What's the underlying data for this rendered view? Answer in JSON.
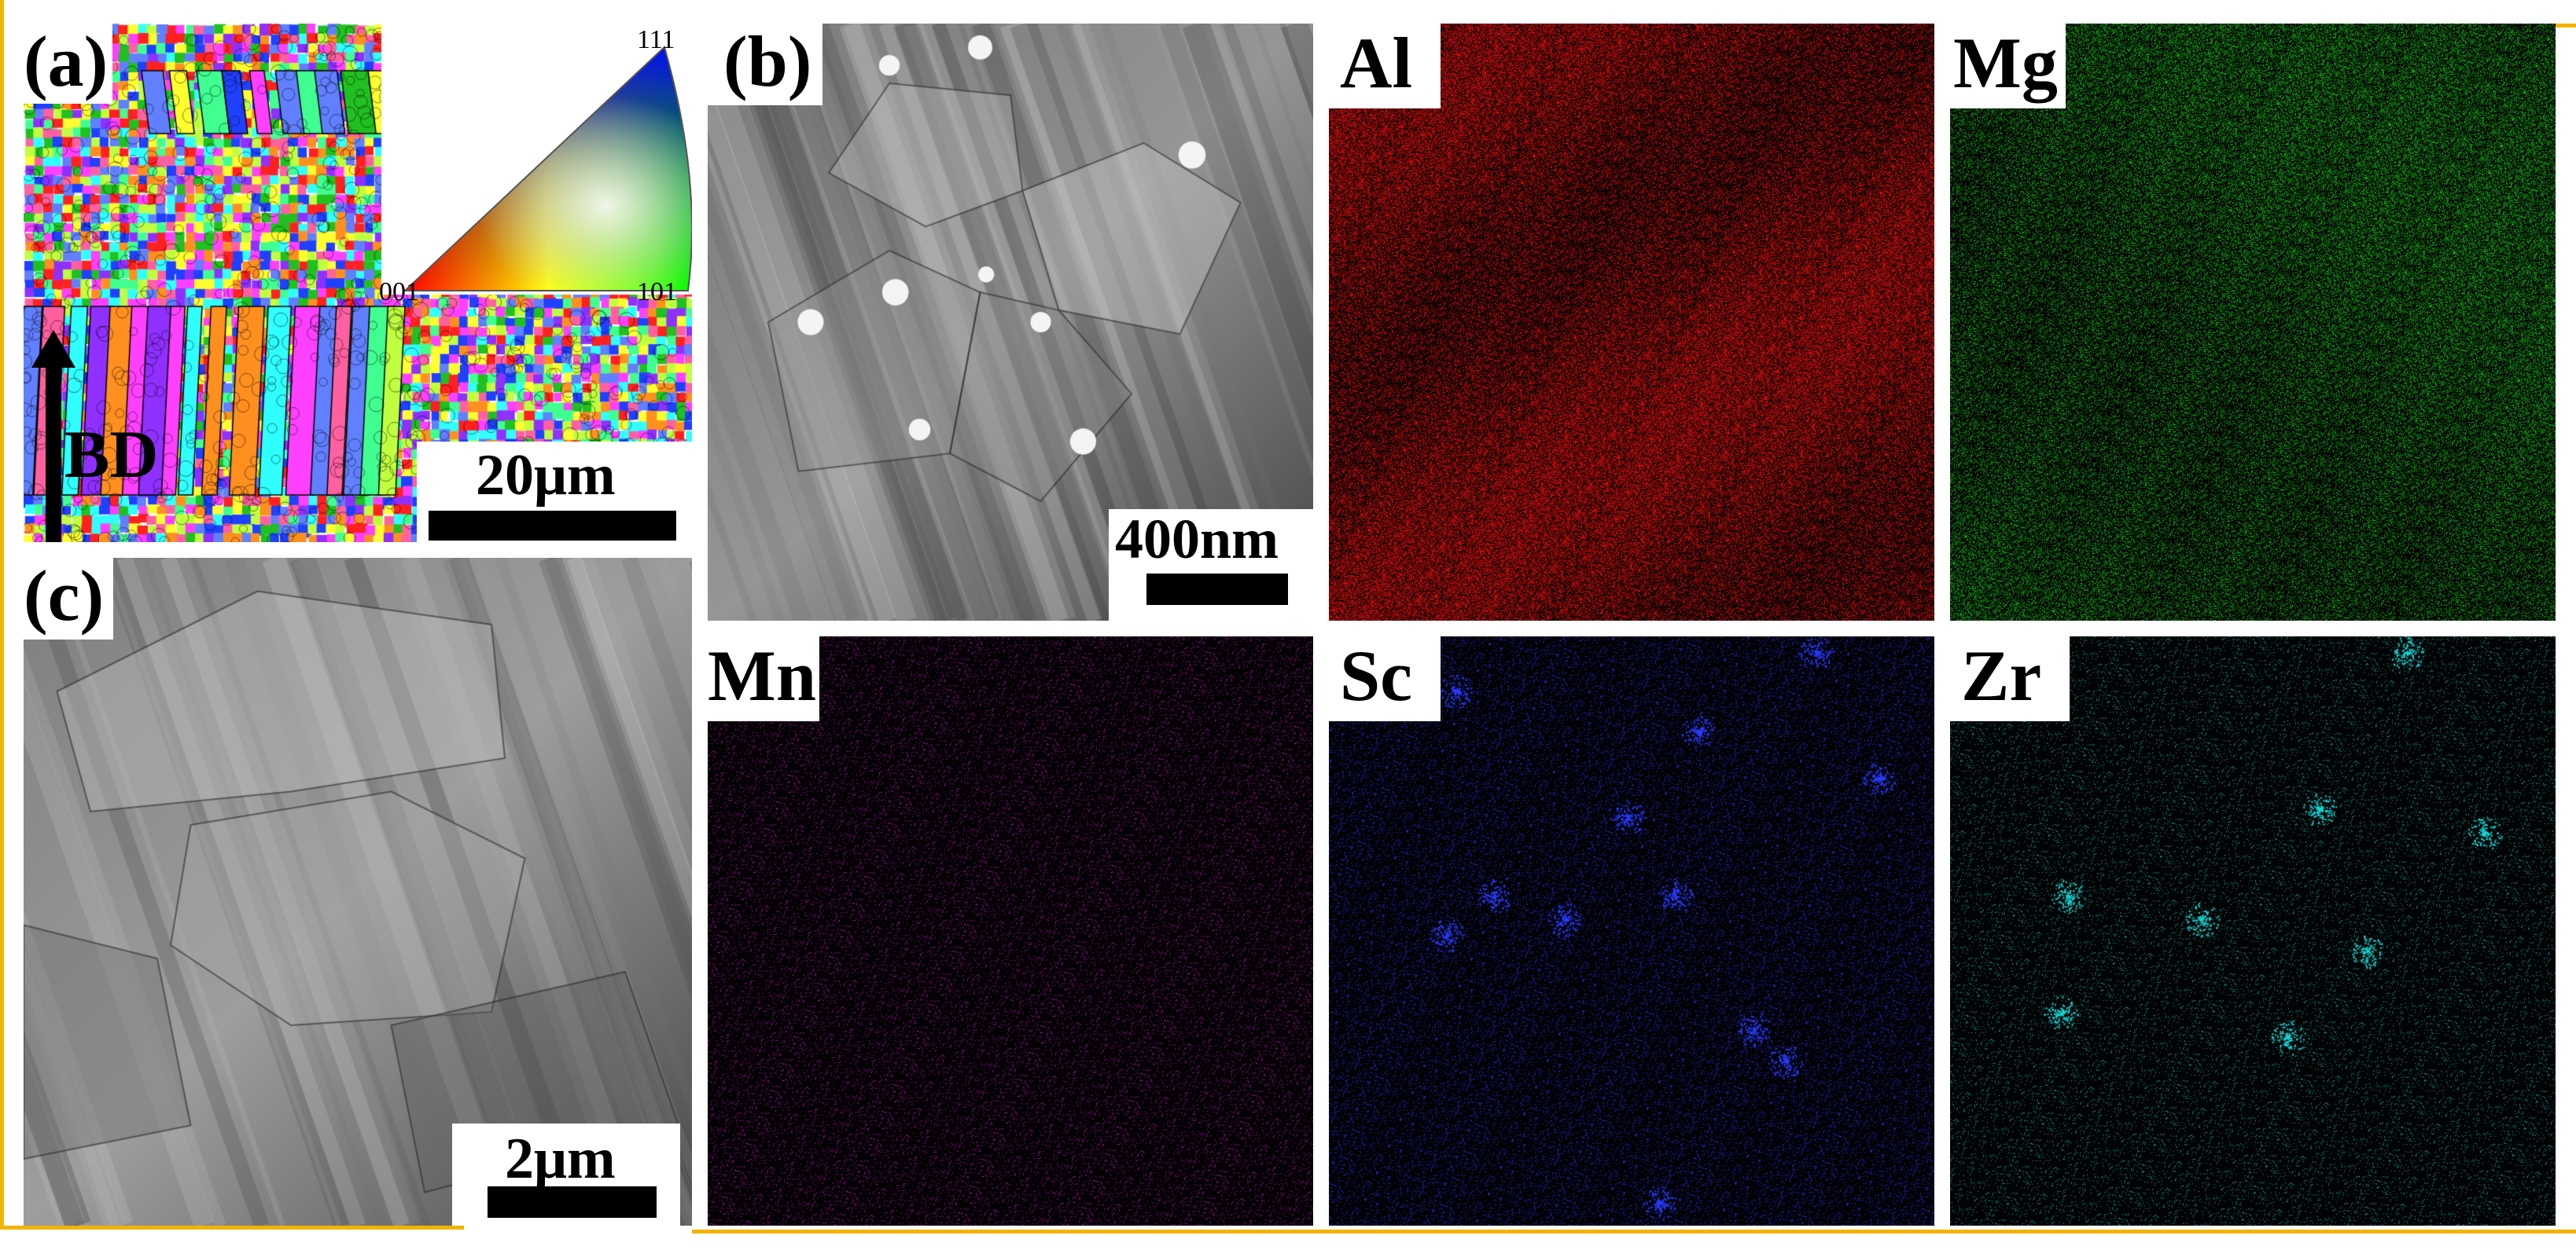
{
  "figure": {
    "panels": {
      "a": {
        "label": "(a)",
        "scale_bar": "20μm",
        "direction_label": "BD",
        "ipf_key": {
          "corner_111": "111",
          "corner_001": "001",
          "corner_101": "101"
        }
      },
      "b": {
        "label": "(b)",
        "scale_bar": "400nm"
      },
      "c": {
        "label": "(c)",
        "scale_bar": "2μm"
      }
    },
    "eds_maps": [
      {
        "element": "Al",
        "color": "#e01010"
      },
      {
        "element": "Mg",
        "color": "#1db01d"
      },
      {
        "element": "Mn",
        "color": "#d21ad2"
      },
      {
        "element": "Sc",
        "color": "#2a3cff"
      },
      {
        "element": "Zr",
        "color": "#19d6d6"
      }
    ]
  }
}
